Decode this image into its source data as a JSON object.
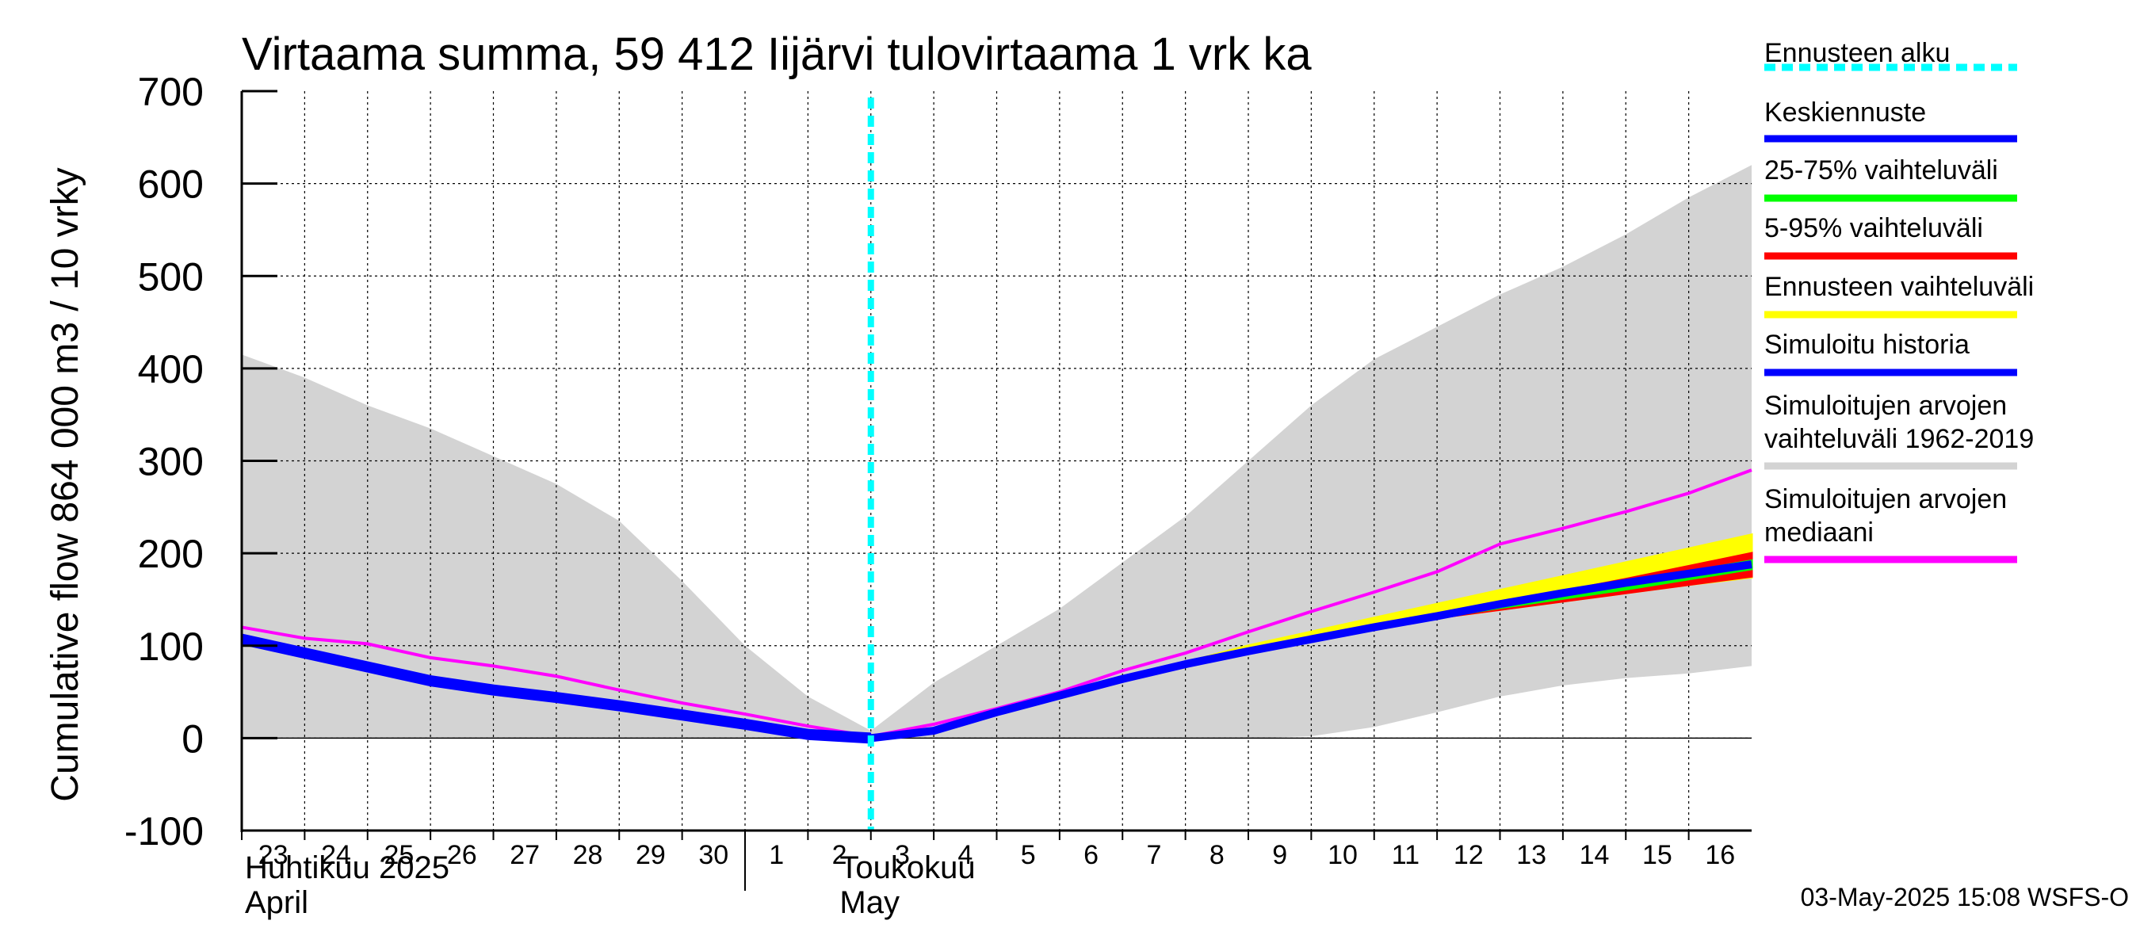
{
  "chart_data": {
    "type": "area",
    "title": "Virtaama summa, 59 412 Iijärvi tulovirtaama 1 vrk ka",
    "ylabel": "Cumulative flow    864 000 m3 / 10 vrky",
    "ylim": [
      -100,
      700
    ],
    "yticks": [
      "-100",
      "0",
      "100",
      "200",
      "300",
      "400",
      "500",
      "600",
      "700"
    ],
    "ytick_values": [
      -100,
      0,
      100,
      200,
      300,
      400,
      500,
      600,
      700
    ],
    "xlim_days": [
      0,
      24
    ],
    "x_tick_labels": [
      "23",
      "24",
      "25",
      "26",
      "27",
      "28",
      "29",
      "30",
      "1",
      "2",
      "3",
      "4",
      "5",
      "6",
      "7",
      "8",
      "9",
      "10",
      "11",
      "12",
      "13",
      "14",
      "15",
      "16"
    ],
    "month_labels": {
      "april_fi": "Huhtikuu  2025",
      "april_en": "April",
      "may_fi": "Toukokuu",
      "may_en": "May"
    },
    "forecast_start_day": 10,
    "grid": true,
    "historical_range_1962_2019": {
      "x": [
        0,
        1,
        2,
        3,
        4,
        5,
        6,
        7,
        8,
        9,
        10,
        11,
        12,
        13,
        14,
        15,
        16,
        17,
        18,
        19,
        20,
        21,
        22,
        23,
        24
      ],
      "upper": [
        415,
        390,
        360,
        335,
        305,
        275,
        235,
        170,
        100,
        45,
        8,
        60,
        100,
        140,
        190,
        240,
        300,
        360,
        410,
        445,
        480,
        510,
        545,
        585,
        620
      ],
      "lower": [
        0,
        0,
        0,
        0,
        0,
        0,
        0,
        0,
        0,
        0,
        0,
        0,
        0,
        0,
        0,
        0,
        0,
        2,
        12,
        28,
        45,
        57,
        65,
        70,
        78
      ]
    },
    "forecast_range": {
      "x": [
        10,
        11,
        12,
        13,
        14,
        15,
        16,
        17,
        18,
        19,
        20,
        21,
        22,
        23,
        24
      ],
      "upper": [
        0,
        10,
        28,
        47,
        65,
        82,
        100,
        115,
        130,
        145,
        160,
        175,
        190,
        205,
        220
      ],
      "lower": [
        0,
        8,
        26,
        45,
        63,
        78,
        92,
        106,
        119,
        130,
        139,
        148,
        157,
        166,
        174
      ]
    },
    "range_5_95": {
      "x": [
        10,
        11,
        12,
        13,
        14,
        15,
        16,
        17,
        18,
        19,
        20,
        21,
        22,
        23,
        24
      ],
      "upper": [
        0,
        9,
        27,
        46,
        64,
        80,
        94,
        108,
        121,
        133,
        146,
        159,
        172,
        186,
        200
      ],
      "lower": [
        0,
        9,
        27,
        46,
        63,
        79,
        93,
        106,
        119,
        130,
        139,
        148,
        157,
        166,
        175
      ]
    },
    "range_25_75": {
      "x": [
        10,
        11,
        12,
        13,
        14,
        15,
        16,
        17,
        18,
        19,
        20,
        21,
        22,
        23,
        24
      ],
      "upper": [
        0,
        9,
        27,
        46,
        63,
        79,
        94,
        107,
        120,
        132,
        145,
        157,
        169,
        180,
        192
      ],
      "lower": [
        0,
        9,
        27,
        46,
        63,
        79,
        93,
        106,
        119,
        130,
        141,
        151,
        161,
        172,
        183
      ]
    },
    "series": [
      {
        "name": "Simuloitu historia",
        "color": "#0000ff",
        "x": [
          0,
          1,
          2,
          3,
          4,
          5,
          6,
          7,
          8,
          9,
          10
        ],
        "values": [
          107,
          92,
          77,
          62,
          52,
          44,
          35,
          25,
          15,
          4,
          0
        ]
      },
      {
        "name": "Keskiennuste",
        "color": "#0000ff",
        "x": [
          10,
          11,
          12,
          13,
          14,
          15,
          16,
          17,
          18,
          19,
          20,
          21,
          22,
          23,
          24
        ],
        "values": [
          0,
          8,
          28,
          46,
          64,
          80,
          94,
          107,
          120,
          132,
          145,
          157,
          168,
          178,
          188
        ]
      },
      {
        "name": "Simuloitujen arvojen mediaani",
        "color": "#ff00ff",
        "x": [
          0,
          1,
          2,
          3,
          4,
          5,
          6,
          7,
          8,
          9,
          10,
          11,
          12,
          13,
          14,
          15,
          16,
          17,
          18,
          19,
          20,
          21,
          22,
          23,
          24
        ],
        "values": [
          120,
          108,
          102,
          87,
          78,
          67,
          52,
          38,
          26,
          13,
          2,
          15,
          32,
          50,
          73,
          92,
          115,
          137,
          158,
          180,
          210,
          227,
          245,
          265,
          290
        ]
      }
    ],
    "legend_position": "right",
    "legend": [
      {
        "label": "Ennusteen alku",
        "color": "#00ffff",
        "style": "dashed"
      },
      {
        "label": "Keskiennuste",
        "color": "#0000ff",
        "style": "solid"
      },
      {
        "label": "25-75% vaihteluväli",
        "color": "#00ff00",
        "style": "solid"
      },
      {
        "label": "5-95% vaihteluväli",
        "color": "#ff0000",
        "style": "solid"
      },
      {
        "label": "Ennusteen vaihteluväli",
        "color": "#ffff00",
        "style": "solid"
      },
      {
        "label": "Simuloitu historia",
        "color": "#0000ff",
        "style": "solid"
      },
      {
        "label": "Simuloitujen arvojen\nvaihteluväli 1962-2019",
        "color": "#d3d3d3",
        "style": "solid"
      },
      {
        "label": "Simuloitujen arvojen\nmediaani",
        "color": "#ff00ff",
        "style": "solid"
      }
    ],
    "timestamp": "03-May-2025 15:08 WSFS-O"
  }
}
